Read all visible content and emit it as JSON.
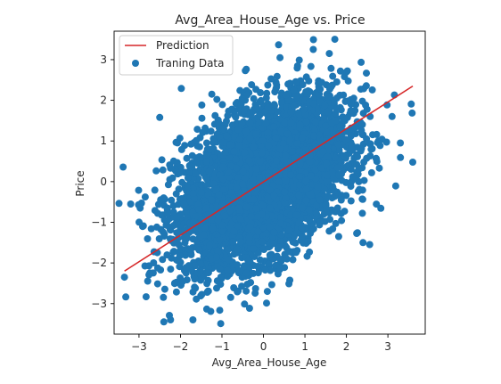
{
  "chart_data": {
    "type": "scatter",
    "title": "Avg_Area_House_Age vs. Price",
    "xlabel": "Avg_Area_House_Age",
    "ylabel": "Price",
    "xlim": [
      -3.6,
      3.9
    ],
    "ylim": [
      -3.75,
      3.7
    ],
    "xticks": [
      -3,
      -2,
      -1,
      0,
      1,
      2,
      3
    ],
    "yticks": [
      -3,
      -2,
      -1,
      0,
      1,
      2,
      3
    ],
    "xtick_labels": [
      "−3",
      "−2",
      "−1",
      "0",
      "1",
      "2",
      "3"
    ],
    "ytick_labels": [
      "−3",
      "−2",
      "−1",
      "0",
      "1",
      "2",
      "3"
    ],
    "grid": false,
    "legend_position": "upper left",
    "series": [
      {
        "name": "Prediction",
        "kind": "line",
        "color": "#d62728",
        "x": [
          -3.35,
          3.6
        ],
        "y": [
          -2.2,
          2.35
        ]
      },
      {
        "name": "Traning Data",
        "kind": "scatter",
        "color": "#1f77b4",
        "correlation_approx": 0.45,
        "n_points_approx": 5000,
        "outliers": [
          {
            "x": 1.72,
            "y": 3.5
          },
          {
            "x": 3.6,
            "y": 0.48
          },
          {
            "x": 3.3,
            "y": 0.95
          },
          {
            "x": -2.5,
            "y": 1.58
          },
          {
            "x": -3.35,
            "y": -2.35
          },
          {
            "x": -2.4,
            "y": -3.45
          },
          {
            "x": -1.7,
            "y": -3.4
          },
          {
            "x": -3.2,
            "y": -0.55
          },
          {
            "x": 3.1,
            "y": 1.6
          },
          {
            "x": 2.4,
            "y": -1.5
          },
          {
            "x": 0.4,
            "y": 3.05
          },
          {
            "x": 1.2,
            "y": 3.25
          }
        ]
      }
    ]
  }
}
